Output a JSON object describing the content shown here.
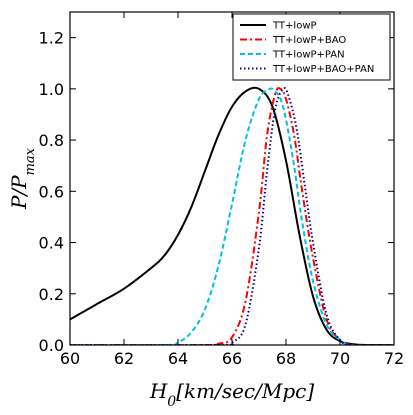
{
  "chart_data": {
    "type": "line",
    "xlabel": "H_0[km/sec/Mpc]",
    "ylabel": "P/P_max",
    "xlim": [
      60,
      72
    ],
    "ylim": [
      0,
      1.3
    ],
    "x_ticks": [
      "60",
      "62",
      "64",
      "66",
      "68",
      "70",
      "72"
    ],
    "y_ticks": [
      "0.0",
      "0.2",
      "0.4",
      "0.6",
      "0.8",
      "1.0",
      "1.2"
    ],
    "grid": false,
    "legend_position": "top-right",
    "series": [
      {
        "name": "TT+lowP",
        "color": "#000000",
        "style": "solid",
        "x": [
          60.0,
          61.0,
          62.0,
          63.0,
          63.5,
          64.0,
          64.5,
          65.0,
          65.5,
          66.0,
          66.5,
          67.0,
          67.5,
          68.0,
          68.5,
          69.0,
          69.5,
          70.0,
          70.5,
          71.0,
          72.0
        ],
        "y": [
          0.1,
          0.16,
          0.22,
          0.3,
          0.35,
          0.43,
          0.54,
          0.68,
          0.82,
          0.93,
          0.99,
          1.0,
          0.93,
          0.72,
          0.43,
          0.19,
          0.06,
          0.015,
          0.003,
          0.0,
          0.0
        ]
      },
      {
        "name": "TT+lowP+BAO",
        "color": "#ff0000",
        "style": "dashdot",
        "x": [
          60.0,
          65.0,
          65.5,
          66.0,
          66.5,
          67.0,
          67.3,
          67.6,
          67.8,
          68.0,
          68.3,
          68.6,
          69.0,
          69.5,
          70.0,
          70.5,
          72.0
        ],
        "y": [
          0.0,
          0.0,
          0.005,
          0.03,
          0.17,
          0.52,
          0.82,
          0.98,
          1.0,
          0.96,
          0.82,
          0.6,
          0.34,
          0.1,
          0.02,
          0.0,
          0.0
        ]
      },
      {
        "name": "TT+lowP+PAN",
        "color": "#00bfe6",
        "style": "dashed",
        "x": [
          60.0,
          63.5,
          64.0,
          64.5,
          65.0,
          65.5,
          66.0,
          66.5,
          67.0,
          67.4,
          67.6,
          67.8,
          68.0,
          68.3,
          68.6,
          69.0,
          69.5,
          70.0,
          70.5,
          72.0
        ],
        "y": [
          0.0,
          0.0,
          0.01,
          0.05,
          0.14,
          0.31,
          0.55,
          0.8,
          0.96,
          1.0,
          0.99,
          0.96,
          0.88,
          0.7,
          0.48,
          0.25,
          0.08,
          0.02,
          0.0,
          0.0
        ]
      },
      {
        "name": "TT+lowP+BAO+PAN",
        "color": "#00008b",
        "style": "dotted",
        "x": [
          60.0,
          65.5,
          66.0,
          66.5,
          67.0,
          67.3,
          67.6,
          67.9,
          68.1,
          68.4,
          68.7,
          69.0,
          69.5,
          70.0,
          70.5,
          72.0
        ],
        "y": [
          0.0,
          0.0,
          0.01,
          0.08,
          0.38,
          0.68,
          0.92,
          1.0,
          0.97,
          0.84,
          0.62,
          0.4,
          0.12,
          0.02,
          0.0,
          0.0
        ]
      }
    ]
  }
}
